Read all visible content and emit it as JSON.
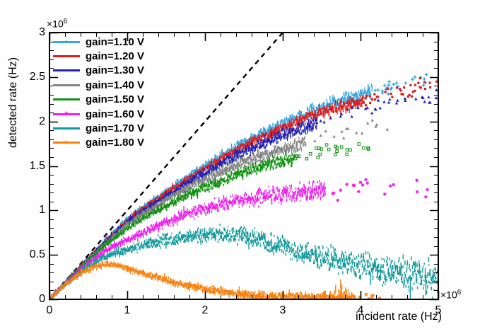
{
  "chart_data": {
    "type": "scatter",
    "title": "",
    "xlabel": "incident rate (Hz)",
    "ylabel": "detected rate (Hz)",
    "unit_scale": 1000000,
    "x_axis": {
      "min": 0,
      "max": 5,
      "tick_values": [
        0,
        1,
        2,
        3,
        4,
        5
      ],
      "tick_labels": [
        "0",
        "1",
        "2",
        "3",
        "4",
        "5"
      ],
      "minor_step": 0.2,
      "exponent_base": "×10",
      "exponent_power": "6"
    },
    "y_axis": {
      "min": 0,
      "max": 3,
      "tick_values": [
        0,
        0.5,
        1,
        1.5,
        2,
        2.5,
        3
      ],
      "tick_labels": [
        "0",
        "0.5",
        "1",
        "1.5",
        "2",
        "2.5",
        "3"
      ],
      "minor_step": 0.1,
      "exponent_base": "×10",
      "exponent_power": "6"
    },
    "grid": false,
    "legend_position": "top-left",
    "reference_line": {
      "style": "dashed",
      "dash": [
        7,
        6
      ],
      "color": "#000000",
      "from": [
        0,
        0
      ],
      "to": [
        3.0,
        3.0
      ]
    },
    "series": [
      {
        "name": "gain=1.10 V",
        "color": "#35A7DF",
        "marker": "plus",
        "anchors": {
          "x": [
            0,
            0.25,
            0.5,
            0.75,
            1,
            1.25,
            1.5,
            1.75,
            2,
            2.25,
            2.5,
            2.75,
            3,
            3.25,
            3.5,
            3.75,
            4,
            4.25,
            4.5,
            4.75,
            5
          ],
          "y": [
            0,
            0.235,
            0.465,
            0.685,
            0.9,
            1.06,
            1.21,
            1.36,
            1.5,
            1.635,
            1.76,
            1.87,
            1.97,
            2.07,
            2.15,
            2.23,
            2.3,
            2.36,
            2.41,
            2.45,
            2.49
          ]
        },
        "scatter": {
          "sigma": [
            0.003,
            0.008
          ],
          "x_end": 5.0,
          "sparse_from": 4.15,
          "sparse_keep": 0.12
        }
      },
      {
        "name": "gain=1.20 V",
        "color": "#DB1F1F",
        "marker": "square",
        "anchors": {
          "x": [
            0,
            0.25,
            0.5,
            0.75,
            1,
            1.25,
            1.5,
            1.75,
            2,
            2.25,
            2.5,
            2.75,
            3,
            3.25,
            3.5,
            3.75,
            4,
            4.25,
            4.5,
            4.75,
            5
          ],
          "y": [
            0,
            0.233,
            0.46,
            0.675,
            0.885,
            1.045,
            1.19,
            1.335,
            1.475,
            1.6,
            1.72,
            1.83,
            1.93,
            2.02,
            2.1,
            2.17,
            2.235,
            2.295,
            2.345,
            2.385,
            2.42
          ]
        },
        "scatter": {
          "sigma": [
            0.003,
            0.008
          ],
          "x_end": 5.0,
          "sparse_from": 4.05,
          "sparse_keep": 0.12
        }
      },
      {
        "name": "gain=1.30 V",
        "color": "#2121B2",
        "marker": "triangle",
        "anchors": {
          "x": [
            0,
            0.25,
            0.5,
            0.75,
            1,
            1.25,
            1.5,
            1.75,
            2,
            2.25,
            2.5,
            2.75,
            3,
            3.25,
            3.5,
            3.75,
            4,
            4.25,
            4.5,
            4.75,
            5
          ],
          "y": [
            0,
            0.231,
            0.455,
            0.665,
            0.865,
            1.02,
            1.16,
            1.295,
            1.425,
            1.545,
            1.655,
            1.755,
            1.845,
            1.925,
            2,
            2.065,
            2.12,
            2.165,
            2.205,
            2.235,
            2.26
          ]
        },
        "scatter": {
          "sigma": [
            0.004,
            0.009
          ],
          "x_end": 5.0,
          "sparse_from": 3.45,
          "sparse_keep": 0.08
        }
      },
      {
        "name": "gain=1.40 V",
        "color": "#858585",
        "marker": "triangle",
        "anchors": {
          "x": [
            0,
            0.25,
            0.5,
            0.75,
            1,
            1.25,
            1.5,
            1.75,
            2,
            2.25,
            2.5,
            2.75,
            3,
            3.25,
            3.5,
            3.75,
            4,
            4.25,
            4.35
          ],
          "y": [
            0,
            0.228,
            0.448,
            0.655,
            0.845,
            0.985,
            1.115,
            1.24,
            1.35,
            1.45,
            1.54,
            1.62,
            1.69,
            1.755,
            1.815,
            1.865,
            1.905,
            1.94,
            1.955
          ]
        },
        "scatter": {
          "sigma": [
            0.004,
            0.009
          ],
          "x_end": 4.35,
          "sparse_from": 3.3,
          "sparse_keep": 0.07
        }
      },
      {
        "name": "gain=1.50 V",
        "color": "#109212",
        "marker": "open-square",
        "anchors": {
          "x": [
            0,
            0.25,
            0.5,
            0.75,
            1,
            1.25,
            1.5,
            1.75,
            2,
            2.25,
            2.5,
            2.75,
            3,
            3.25,
            3.5,
            3.75,
            4,
            4.25,
            4.3
          ],
          "y": [
            0,
            0.225,
            0.44,
            0.63,
            0.8,
            0.93,
            1.05,
            1.16,
            1.26,
            1.35,
            1.43,
            1.5,
            1.555,
            1.61,
            1.655,
            1.695,
            1.725,
            1.75,
            1.755
          ]
        },
        "scatter": {
          "sigma": [
            0.005,
            0.01
          ],
          "x_end": 4.3,
          "sparse_from": 3.15,
          "sparse_keep": 0.07
        }
      },
      {
        "name": "gain=1.60 V",
        "color": "#EC1FEC",
        "marker": "star",
        "anchors": {
          "x": [
            0,
            0.25,
            0.5,
            0.75,
            1,
            1.25,
            1.5,
            1.75,
            2,
            2.25,
            2.5,
            2.75,
            3,
            3.25,
            3.5,
            3.75,
            4,
            4.25,
            4.5,
            4.75,
            4.9
          ],
          "y": [
            0,
            0.215,
            0.415,
            0.565,
            0.67,
            0.77,
            0.86,
            0.945,
            1.02,
            1.075,
            1.12,
            1.155,
            1.185,
            1.21,
            1.23,
            1.245,
            1.25,
            1.25,
            1.24,
            1.225,
            1.215
          ]
        },
        "scatter": {
          "sigma": [
            0.005,
            0.013
          ],
          "x_end": 4.9,
          "sparse_from": 3.55,
          "sparse_keep": 0.05
        }
      },
      {
        "name": "gain=1.70 V",
        "color": "#12999B",
        "marker": "dot",
        "anchors": {
          "x": [
            0,
            0.25,
            0.5,
            0.75,
            1,
            1.25,
            1.5,
            1.75,
            2,
            2.25,
            2.5,
            2.75,
            3,
            3.25,
            3.5,
            3.75,
            4,
            4.25,
            4.5,
            4.75,
            5
          ],
          "y": [
            0,
            0.2,
            0.37,
            0.49,
            0.56,
            0.62,
            0.665,
            0.7,
            0.725,
            0.735,
            0.72,
            0.66,
            0.585,
            0.525,
            0.47,
            0.42,
            0.375,
            0.34,
            0.305,
            0.27,
            0.225
          ]
        },
        "scatter": {
          "sigma": [
            0.006,
            0.016
          ],
          "x_end": 5.0,
          "sparse_from": 5.1,
          "sparse_keep": 1,
          "down_spikes": true
        }
      },
      {
        "name": "gain=1.80 V",
        "color": "#F8820E",
        "marker": "star",
        "anchors": {
          "x": [
            0,
            0.2,
            0.4,
            0.6,
            0.75,
            0.9,
            1,
            1.25,
            1.5,
            1.75,
            2,
            2.25,
            2.5,
            2.75,
            3,
            3.25,
            3.5,
            3.75,
            4,
            4.25
          ],
          "y": [
            0,
            0.165,
            0.3,
            0.375,
            0.4,
            0.375,
            0.345,
            0.28,
            0.215,
            0.16,
            0.115,
            0.085,
            0.055,
            0.04,
            0.03,
            0.025,
            0.022,
            0.02,
            0.02,
            0.015
          ]
        },
        "scatter": {
          "sigma": [
            0.013,
            0.002
          ],
          "x_end": 4.25,
          "sparse_from": 3.9,
          "sparse_keep": 0.1,
          "up_spikes": true
        }
      }
    ]
  }
}
